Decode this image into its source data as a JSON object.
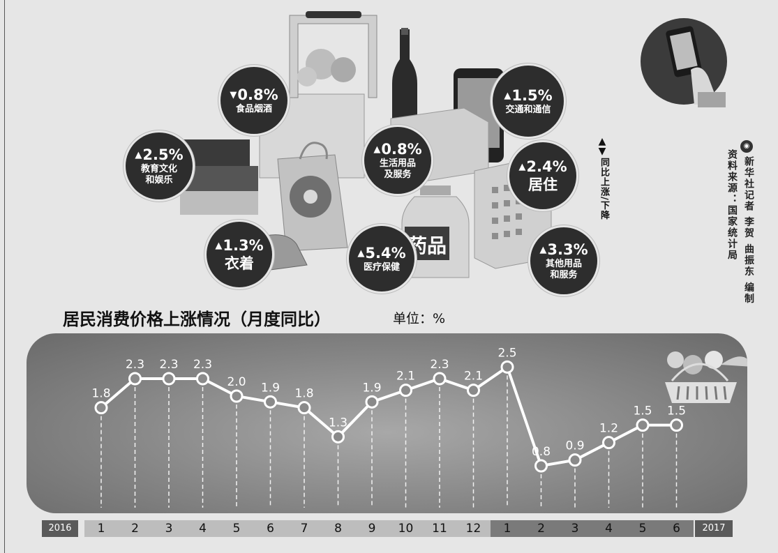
{
  "illustration": {
    "legend_label": "同比上涨/下降",
    "credit_line1": "新华社记者 李贺 曲振东 编制",
    "credit_line2": "资料来源：国家统计局",
    "drug_label": "药品",
    "categories": [
      {
        "key": "food",
        "direction": "down",
        "value": "0.8%",
        "label": "食品烟酒"
      },
      {
        "key": "transport",
        "direction": "up",
        "value": "1.5%",
        "label": "交通和通信"
      },
      {
        "key": "education",
        "direction": "up",
        "value": "2.5%",
        "label": "教育文化和娱乐"
      },
      {
        "key": "daily",
        "direction": "up",
        "value": "0.8%",
        "label": "生活用品及服务"
      },
      {
        "key": "housing",
        "direction": "up",
        "value": "2.4%",
        "label": "居住"
      },
      {
        "key": "clothing",
        "direction": "up",
        "value": "1.3%",
        "label": "衣着"
      },
      {
        "key": "medical",
        "direction": "up",
        "value": "5.4%",
        "label": "医疗保健"
      },
      {
        "key": "other",
        "direction": "up",
        "value": "3.3%",
        "label": "其他用品和服务"
      }
    ]
  },
  "header": {
    "title": "居民消费价格上涨情况（月度同比）",
    "unit": "单位：%"
  },
  "chart_data": {
    "type": "line",
    "title": "居民消费价格上涨情况（月度同比）",
    "ylabel": "单位：%",
    "x": [
      "1",
      "2",
      "3",
      "4",
      "5",
      "6",
      "7",
      "8",
      "9",
      "10",
      "11",
      "12",
      "1",
      "2",
      "3",
      "4",
      "5",
      "6"
    ],
    "years": [
      {
        "label": "2016",
        "months": 12
      },
      {
        "label": "2017",
        "months": 6
      }
    ],
    "series": [
      {
        "values": [
          1.8,
          2.3,
          2.3,
          2.3,
          2.0,
          1.9,
          1.8,
          1.3,
          1.9,
          2.1,
          2.3,
          2.1,
          2.5,
          0.8,
          0.9,
          1.2,
          1.5,
          1.5
        ]
      }
    ],
    "data_labels": [
      "1.8",
      "2.3",
      "2.3",
      "2.3",
      "2.0",
      "1.9",
      "1.8",
      "1.3",
      "1.9",
      "2.1",
      "2.3",
      "2.1",
      "2.5",
      "0.8",
      "0.9",
      "1.2",
      "1.5",
      "1.5"
    ],
    "ylim": [
      0.5,
      2.6
    ],
    "grid": false,
    "colors": {
      "line": "#ffffff",
      "marker_fill": "#8a8a8a",
      "panel": "#8a8a8a",
      "axis_2016": "#bdbdbd",
      "axis_2017": "#7a7a7a"
    }
  }
}
